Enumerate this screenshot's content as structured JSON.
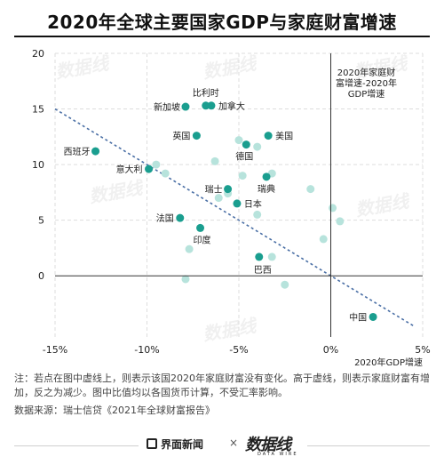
{
  "title": "2020年全球主要国家GDP与家庭财富增速",
  "chart_data": {
    "type": "scatter",
    "xlim": [
      -15,
      5
    ],
    "ylim": [
      -5.5,
      20
    ],
    "x_ticks": [
      -15,
      -10,
      -5,
      0,
      5
    ],
    "x_tick_labels": [
      "-15%",
      "-10%",
      "-5%",
      "0%",
      "5%"
    ],
    "y_ticks": [
      0,
      5,
      10,
      15,
      20
    ],
    "y_tick_labels": [
      "0",
      "5",
      "10",
      "15",
      "20"
    ],
    "xlabel": "2020年GDP增速",
    "ylabel_lines": [
      "2020年家庭财",
      "富增速-2020年",
      "GDP增速"
    ],
    "grid": true,
    "reference_line": {
      "from": [
        -15,
        15
      ],
      "to": [
        4.5,
        -4.5
      ]
    },
    "labeled_points": [
      {
        "name": "比利时",
        "x": -6.8,
        "y": 15.3
      },
      {
        "name": "新加坡",
        "x": -7.9,
        "y": 15.2
      },
      {
        "name": "加拿大",
        "x": -6.5,
        "y": 15.3
      },
      {
        "name": "英国",
        "x": -7.3,
        "y": 12.6
      },
      {
        "name": "美国",
        "x": -3.4,
        "y": 12.6
      },
      {
        "name": "德国",
        "x": -4.6,
        "y": 11.8
      },
      {
        "name": "西班牙",
        "x": -12.8,
        "y": 11.2
      },
      {
        "name": "意大利",
        "x": -9.9,
        "y": 9.6
      },
      {
        "name": "瑞典",
        "x": -3.5,
        "y": 8.9
      },
      {
        "name": "瑞士",
        "x": -5.6,
        "y": 7.8
      },
      {
        "name": "日本",
        "x": -5.1,
        "y": 6.5
      },
      {
        "name": "法国",
        "x": -8.2,
        "y": 5.2
      },
      {
        "name": "印度",
        "x": -7.1,
        "y": 4.3
      },
      {
        "name": "巴西",
        "x": -3.9,
        "y": 1.7
      },
      {
        "name": "中国",
        "x": 2.3,
        "y": -3.7
      }
    ],
    "other_points": [
      {
        "x": -9.5,
        "y": 10.0
      },
      {
        "x": -9.0,
        "y": 9.2
      },
      {
        "x": -6.3,
        "y": 10.3
      },
      {
        "x": -5.0,
        "y": 12.2
      },
      {
        "x": -4.0,
        "y": 11.6
      },
      {
        "x": -3.2,
        "y": 9.2
      },
      {
        "x": -6.1,
        "y": 7.0
      },
      {
        "x": -5.6,
        "y": 7.4
      },
      {
        "x": -4.8,
        "y": 9.0
      },
      {
        "x": -4.0,
        "y": 5.5
      },
      {
        "x": -1.1,
        "y": 7.8
      },
      {
        "x": 0.1,
        "y": 6.1
      },
      {
        "x": 0.5,
        "y": 4.9
      },
      {
        "x": -0.4,
        "y": 3.3
      },
      {
        "x": -7.7,
        "y": 2.4
      },
      {
        "x": -3.2,
        "y": 1.7
      },
      {
        "x": -2.5,
        "y": -0.8
      },
      {
        "x": -7.9,
        "y": -0.3
      }
    ]
  },
  "note": "注：若点在图中虚线上，则表示该国2020年家庭财富没有变化。高于虚线，则表示家庭财富有增加，反之为减少。图中比值均以各国货币计算，不受汇率影响。",
  "source": "数据来源：瑞士信贷《2021年全球财富报告》",
  "footer": {
    "brand": "界面新闻",
    "separator": "×",
    "logo": "数据线",
    "logo_sub": "DATA WIRE"
  },
  "colors": {
    "highlight": "#1a9e8f",
    "other": "#b7e3dc",
    "reference_line": "#4a6fa5",
    "grid": "#dddddd"
  }
}
